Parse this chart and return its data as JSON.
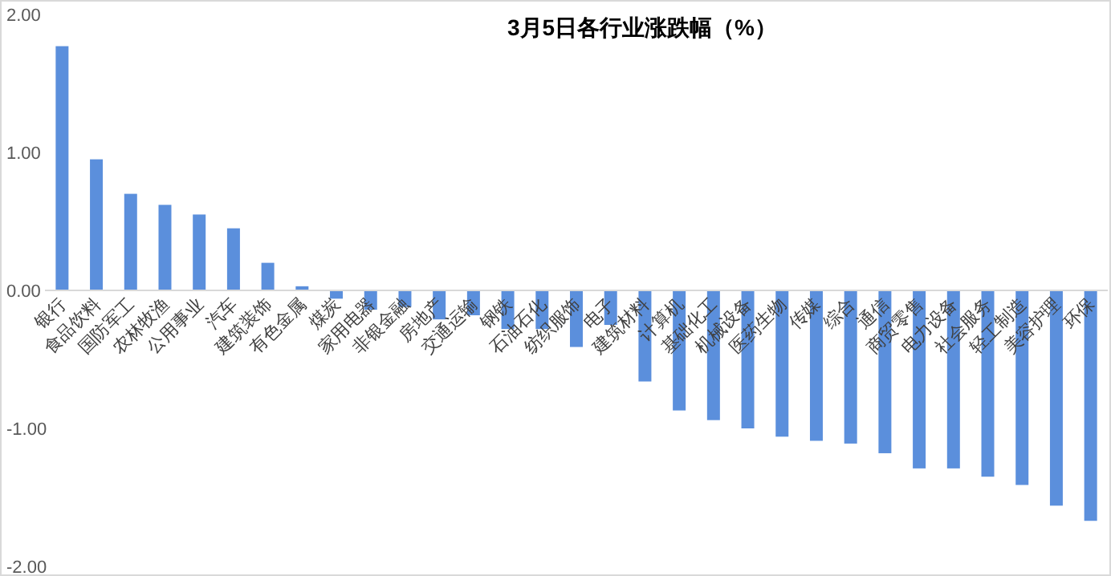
{
  "chart_data": {
    "type": "bar",
    "title": "3月5日各行业涨跌幅（%）",
    "categories": [
      "银行",
      "食品饮料",
      "国防军工",
      "农林牧渔",
      "公用事业",
      "汽车",
      "建筑装饰",
      "有色金属",
      "煤炭",
      "家用电器",
      "非银金融",
      "房地产",
      "交通运输",
      "钢铁",
      "石油石化",
      "纺织服饰",
      "电子",
      "建筑材料",
      "计算机",
      "基础化工",
      "机械设备",
      "医药生物",
      "传媒",
      "综合",
      "通信",
      "商贸零售",
      "电力设备",
      "社会服务",
      "轻工制造",
      "美容护理",
      "环保"
    ],
    "values": [
      1.77,
      0.95,
      0.7,
      0.62,
      0.55,
      0.45,
      0.2,
      0.03,
      -0.06,
      -0.14,
      -0.12,
      -0.21,
      -0.18,
      -0.28,
      -0.28,
      -0.41,
      -0.25,
      -0.66,
      -0.87,
      -0.94,
      -1.0,
      -1.06,
      -1.09,
      -1.11,
      -1.18,
      -1.29,
      -1.29,
      -1.35,
      -1.41,
      -1.56,
      -1.67
    ],
    "color": "#5b8fdc",
    "ylim": [
      -2,
      2
    ],
    "yticks": [
      {
        "value": 2,
        "label": "2.00"
      },
      {
        "value": 1,
        "label": "1.00"
      },
      {
        "value": 0,
        "label": "0.00"
      },
      {
        "value": -1,
        "label": "-1.00"
      },
      {
        "value": -2,
        "label": "-2.00"
      }
    ]
  }
}
